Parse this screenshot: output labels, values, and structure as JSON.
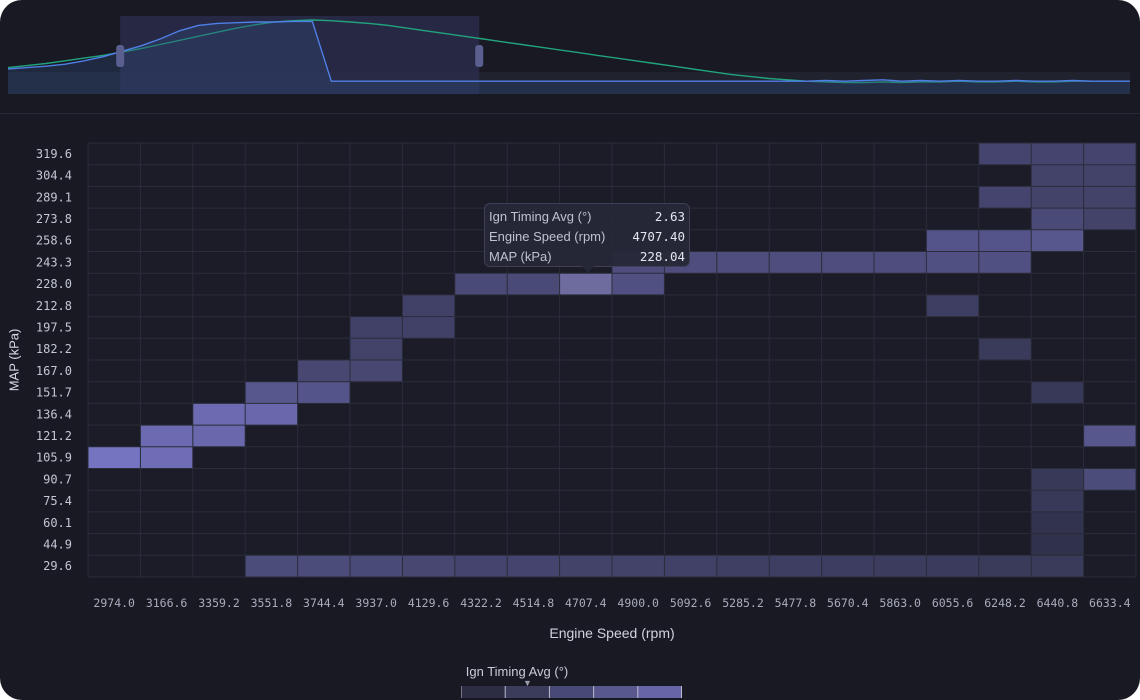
{
  "chart_data": {
    "type": "heatmap",
    "xlabel": "Engine Speed (rpm)",
    "ylabel": "MAP (kPa)",
    "x_ticks": [
      "2974.0",
      "3166.6",
      "3359.2",
      "3551.8",
      "3744.4",
      "3937.0",
      "4129.6",
      "4322.2",
      "4514.8",
      "4707.4",
      "4900.0",
      "5092.6",
      "5285.2",
      "5477.8",
      "5670.4",
      "5863.0",
      "6055.6",
      "6248.2",
      "6440.8",
      "6633.4"
    ],
    "y_ticks": [
      "319.6",
      "304.4",
      "289.1",
      "273.8",
      "258.6",
      "243.3",
      "228.0",
      "212.8",
      "197.5",
      "182.2",
      "167.0",
      "151.7",
      "136.4",
      "121.2",
      "105.9",
      "90.7",
      "75.4",
      "60.1",
      "44.9",
      "29.6"
    ],
    "cells": [
      {
        "x": "2974.0",
        "y": "105.9",
        "v": 0.95
      },
      {
        "x": "3166.6",
        "y": "105.9",
        "v": 0.88
      },
      {
        "x": "3166.6",
        "y": "121.2",
        "v": 0.85
      },
      {
        "x": "3359.2",
        "y": "121.2",
        "v": 0.82
      },
      {
        "x": "3359.2",
        "y": "136.4",
        "v": 0.85
      },
      {
        "x": "3551.8",
        "y": "136.4",
        "v": 0.82
      },
      {
        "x": "3551.8",
        "y": "151.7",
        "v": 0.62
      },
      {
        "x": "3744.4",
        "y": "151.7",
        "v": 0.6
      },
      {
        "x": "3744.4",
        "y": "167.0",
        "v": 0.45
      },
      {
        "x": "3937.0",
        "y": "167.0",
        "v": 0.45
      },
      {
        "x": "3937.0",
        "y": "182.2",
        "v": 0.4
      },
      {
        "x": "3937.0",
        "y": "197.5",
        "v": 0.38
      },
      {
        "x": "4129.6",
        "y": "197.5",
        "v": 0.38
      },
      {
        "x": "4129.6",
        "y": "212.8",
        "v": 0.38
      },
      {
        "x": "4322.2",
        "y": "228.0",
        "v": 0.48
      },
      {
        "x": "4514.8",
        "y": "228.0",
        "v": 0.48
      },
      {
        "x": "4707.4",
        "y": "228.0",
        "v": 1.0
      },
      {
        "x": "4900.0",
        "y": "228.0",
        "v": 0.55
      },
      {
        "x": "4900.0",
        "y": "243.3",
        "v": 0.52
      },
      {
        "x": "5092.6",
        "y": "243.3",
        "v": 0.52
      },
      {
        "x": "5285.2",
        "y": "243.3",
        "v": 0.52
      },
      {
        "x": "5477.8",
        "y": "243.3",
        "v": 0.52
      },
      {
        "x": "5670.4",
        "y": "243.3",
        "v": 0.52
      },
      {
        "x": "5863.0",
        "y": "243.3",
        "v": 0.52
      },
      {
        "x": "6055.6",
        "y": "243.3",
        "v": 0.55
      },
      {
        "x": "6248.2",
        "y": "243.3",
        "v": 0.55
      },
      {
        "x": "6055.6",
        "y": "258.6",
        "v": 0.6
      },
      {
        "x": "6248.2",
        "y": "258.6",
        "v": 0.6
      },
      {
        "x": "6440.8",
        "y": "258.6",
        "v": 0.62
      },
      {
        "x": "6055.6",
        "y": "212.8",
        "v": 0.35
      },
      {
        "x": "6248.2",
        "y": "182.2",
        "v": 0.3
      },
      {
        "x": "6248.2",
        "y": "319.6",
        "v": 0.42
      },
      {
        "x": "6440.8",
        "y": "319.6",
        "v": 0.42
      },
      {
        "x": "6633.4",
        "y": "319.6",
        "v": 0.42
      },
      {
        "x": "6440.8",
        "y": "304.4",
        "v": 0.4
      },
      {
        "x": "6633.4",
        "y": "304.4",
        "v": 0.4
      },
      {
        "x": "6248.2",
        "y": "289.1",
        "v": 0.42
      },
      {
        "x": "6440.8",
        "y": "289.1",
        "v": 0.4
      },
      {
        "x": "6633.4",
        "y": "289.1",
        "v": 0.4
      },
      {
        "x": "6440.8",
        "y": "273.8",
        "v": 0.48
      },
      {
        "x": "6633.4",
        "y": "273.8",
        "v": 0.4
      },
      {
        "x": "6440.8",
        "y": "151.7",
        "v": 0.28
      },
      {
        "x": "6633.4",
        "y": "121.2",
        "v": 0.62
      },
      {
        "x": "6633.4",
        "y": "90.7",
        "v": 0.5
      },
      {
        "x": "6440.8",
        "y": "90.7",
        "v": 0.28
      },
      {
        "x": "6440.8",
        "y": "75.4",
        "v": 0.28
      },
      {
        "x": "6440.8",
        "y": "60.1",
        "v": 0.22
      },
      {
        "x": "6440.8",
        "y": "44.9",
        "v": 0.2
      },
      {
        "x": "3551.8",
        "y": "29.6",
        "v": 0.5
      },
      {
        "x": "3744.4",
        "y": "29.6",
        "v": 0.5
      },
      {
        "x": "3937.0",
        "y": "29.6",
        "v": 0.48
      },
      {
        "x": "4129.6",
        "y": "29.6",
        "v": 0.45
      },
      {
        "x": "4322.2",
        "y": "29.6",
        "v": 0.42
      },
      {
        "x": "4514.8",
        "y": "29.6",
        "v": 0.42
      },
      {
        "x": "4707.4",
        "y": "29.6",
        "v": 0.4
      },
      {
        "x": "4900.0",
        "y": "29.6",
        "v": 0.4
      },
      {
        "x": "5092.6",
        "y": "29.6",
        "v": 0.38
      },
      {
        "x": "5285.2",
        "y": "29.6",
        "v": 0.36
      },
      {
        "x": "5477.8",
        "y": "29.6",
        "v": 0.35
      },
      {
        "x": "5670.4",
        "y": "29.6",
        "v": 0.34
      },
      {
        "x": "5863.0",
        "y": "29.6",
        "v": 0.33
      },
      {
        "x": "6055.6",
        "y": "29.6",
        "v": 0.32
      },
      {
        "x": "6248.2",
        "y": "29.6",
        "v": 0.3
      },
      {
        "x": "6440.8",
        "y": "29.6",
        "v": 0.3
      }
    ],
    "highlight": {
      "x": "4707.4",
      "y": "228.0"
    },
    "color_scale": [
      "#1e1f2c",
      "#7a78c8"
    ]
  },
  "overview": {
    "series": [
      {
        "color": "#22a37b",
        "values": [
          0.3,
          0.33,
          0.36,
          0.4,
          0.44,
          0.48,
          0.53,
          0.58,
          0.64,
          0.7,
          0.76,
          0.82,
          0.88,
          0.93,
          0.97,
          0.99,
          1.0,
          0.99,
          0.97,
          0.95,
          0.92,
          0.88,
          0.84,
          0.8,
          0.76,
          0.72,
          0.68,
          0.64,
          0.6,
          0.56,
          0.52,
          0.48,
          0.44,
          0.4,
          0.36,
          0.32,
          0.28,
          0.24,
          0.2,
          0.17,
          0.14,
          0.12,
          0.1,
          0.09,
          0.08,
          0.08,
          0.09,
          0.08,
          0.09,
          0.09,
          0.1,
          0.09,
          0.09,
          0.1,
          0.09,
          0.09,
          0.1,
          0.1,
          0.1,
          0.1
        ]
      },
      {
        "color": "#4f7fe6",
        "values": [
          0.28,
          0.3,
          0.32,
          0.35,
          0.4,
          0.46,
          0.54,
          0.62,
          0.72,
          0.84,
          0.92,
          0.95,
          0.96,
          0.97,
          0.97,
          0.98,
          0.98,
          0.1,
          0.1,
          0.1,
          0.1,
          0.1,
          0.1,
          0.1,
          0.1,
          0.1,
          0.1,
          0.1,
          0.1,
          0.1,
          0.1,
          0.1,
          0.1,
          0.1,
          0.1,
          0.1,
          0.1,
          0.1,
          0.1,
          0.1,
          0.1,
          0.1,
          0.1,
          0.11,
          0.1,
          0.11,
          0.12,
          0.1,
          0.11,
          0.1,
          0.11,
          0.1,
          0.1,
          0.11,
          0.1,
          0.1,
          0.11,
          0.1,
          0.1,
          0.1
        ]
      }
    ],
    "brush_range": [
      0.1,
      0.42
    ]
  },
  "tooltip": {
    "rows": [
      {
        "label": "Ign Timing Avg (°)",
        "value": "2.63"
      },
      {
        "label": "Engine Speed (rpm)",
        "value": "4707.40"
      },
      {
        "label": "MAP (kPa)",
        "value": "228.04"
      }
    ]
  },
  "legend": {
    "title": "Ign Timing Avg (°)",
    "marker_fraction": 0.3
  }
}
